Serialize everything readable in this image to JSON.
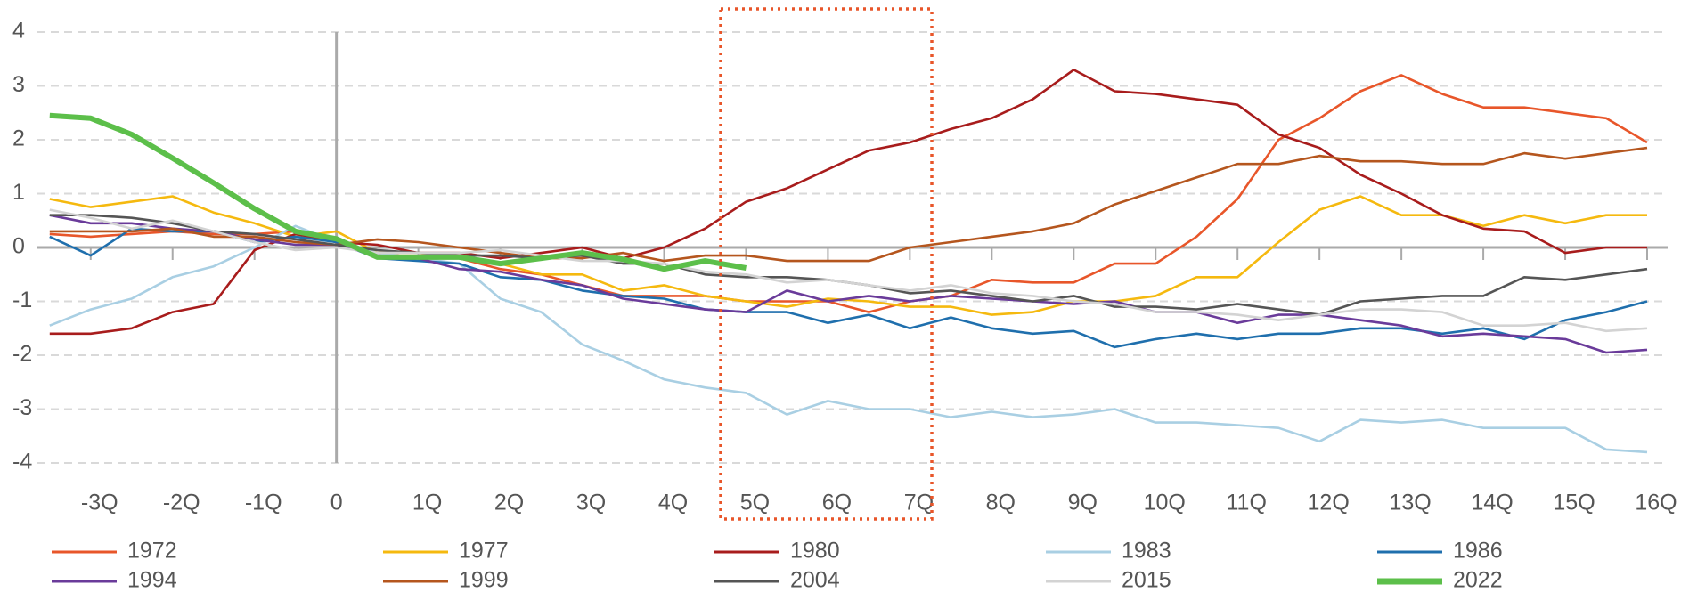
{
  "chart_data": {
    "type": "line",
    "x": [
      -3.5,
      -3,
      -2.5,
      -2,
      -1.5,
      -1,
      -0.5,
      0,
      0.5,
      1,
      1.5,
      2,
      2.5,
      3,
      3.5,
      4,
      4.5,
      5,
      5.5,
      6,
      6.5,
      7,
      7.5,
      8,
      8.5,
      9,
      9.5,
      10,
      10.5,
      11,
      11.5,
      12,
      12.5,
      13,
      13.5,
      14,
      14.5,
      15,
      15.5,
      16
    ],
    "xlim": [
      -3.65,
      16.25
    ],
    "xticks": [
      {
        "value": -3,
        "label": "-3Q"
      },
      {
        "value": -2,
        "label": "-2Q"
      },
      {
        "value": -1,
        "label": "-1Q"
      },
      0,
      {
        "value": 1,
        "label": "1Q"
      },
      {
        "value": 2,
        "label": "2Q"
      },
      {
        "value": 3,
        "label": "3Q"
      },
      {
        "value": 4,
        "label": "4Q"
      },
      {
        "value": 5,
        "label": "5Q"
      },
      {
        "value": 6,
        "label": "6Q"
      },
      {
        "value": 7,
        "label": "7Q"
      },
      {
        "value": 8,
        "label": "8Q"
      },
      {
        "value": 9,
        "label": "9Q"
      },
      {
        "value": 10,
        "label": "10Q"
      },
      {
        "value": 11,
        "label": "11Q"
      },
      {
        "value": 12,
        "label": "12Q"
      },
      {
        "value": 13,
        "label": "13Q"
      },
      {
        "value": 14,
        "label": "14Q"
      },
      {
        "value": 15,
        "label": "15Q"
      },
      {
        "value": 16,
        "label": "16Q"
      }
    ],
    "ylim": [
      -4,
      4
    ],
    "yticks": [
      -4,
      -3,
      -2,
      -1,
      0,
      1,
      2,
      3,
      4
    ],
    "grid": true,
    "legend": "bottom",
    "series": [
      {
        "name": "1972",
        "color": "#e8562a",
        "values": [
          0.25,
          0.2,
          0.25,
          0.3,
          0.25,
          0.25,
          0.3,
          0.1,
          -0.1,
          -0.2,
          -0.2,
          -0.4,
          -0.5,
          -0.7,
          -0.9,
          -0.9,
          -0.9,
          -1.0,
          -1.0,
          -1.0,
          -1.2,
          -1.0,
          -0.9,
          -0.6,
          -0.65,
          -0.65,
          -0.3,
          -0.3,
          0.2,
          0.9,
          2.0,
          2.4,
          2.9,
          3.2,
          2.85,
          2.6,
          2.6,
          2.5,
          2.4,
          1.95
        ]
      },
      {
        "name": "1977",
        "color": "#f5b90f",
        "values": [
          0.9,
          0.75,
          0.85,
          0.95,
          0.65,
          0.45,
          0.2,
          0.3,
          -0.1,
          -0.1,
          -0.2,
          -0.3,
          -0.5,
          -0.5,
          -0.8,
          -0.7,
          -0.9,
          -1.0,
          -1.1,
          -0.95,
          -1.0,
          -1.1,
          -1.1,
          -1.25,
          -1.2,
          -1.0,
          -1.0,
          -0.9,
          -0.55,
          -0.55,
          0.1,
          0.7,
          0.95,
          0.6,
          0.6,
          0.4,
          0.6,
          0.45,
          0.6,
          0.6
        ]
      },
      {
        "name": "1980",
        "color": "#a81c1c",
        "values": [
          -1.6,
          -1.6,
          -1.5,
          -1.2,
          -1.05,
          -0.05,
          0.25,
          0.1,
          0.05,
          -0.1,
          -0.1,
          -0.2,
          -0.1,
          0,
          -0.2,
          0,
          0.35,
          0.85,
          1.1,
          1.45,
          1.8,
          1.95,
          2.2,
          2.4,
          2.75,
          3.3,
          2.9,
          2.85,
          2.75,
          2.65,
          2.1,
          1.85,
          1.35,
          1.0,
          0.6,
          0.35,
          0.3,
          -0.1,
          0,
          0
        ]
      },
      {
        "name": "1983",
        "color": "#a9cfe3",
        "values": [
          -1.45,
          -1.15,
          -0.95,
          -0.55,
          -0.35,
          0,
          0.4,
          0.1,
          -0.1,
          -0.2,
          -0.3,
          -0.95,
          -1.2,
          -1.8,
          -2.1,
          -2.45,
          -2.6,
          -2.7,
          -3.1,
          -2.85,
          -3.0,
          -3.0,
          -3.15,
          -3.05,
          -3.15,
          -3.1,
          -3.0,
          -3.25,
          -3.25,
          -3.3,
          -3.35,
          -3.6,
          -3.2,
          -3.25,
          -3.2,
          -3.35,
          -3.35,
          -3.35,
          -3.75,
          -3.8
        ]
      },
      {
        "name": "1986",
        "color": "#1f6fad",
        "values": [
          0.2,
          -0.15,
          0.35,
          0.3,
          0.3,
          0.1,
          0.2,
          0.1,
          -0.2,
          -0.25,
          -0.3,
          -0.55,
          -0.6,
          -0.8,
          -0.9,
          -0.95,
          -1.15,
          -1.2,
          -1.2,
          -1.4,
          -1.25,
          -1.5,
          -1.3,
          -1.5,
          -1.6,
          -1.55,
          -1.85,
          -1.7,
          -1.6,
          -1.7,
          -1.6,
          -1.6,
          -1.5,
          -1.5,
          -1.6,
          -1.5,
          -1.7,
          -1.35,
          -1.2,
          -1.0
        ]
      },
      {
        "name": "1994",
        "color": "#6a3b9a",
        "values": [
          0.6,
          0.45,
          0.45,
          0.35,
          0.3,
          0.15,
          0.05,
          0.05,
          -0.15,
          -0.2,
          -0.4,
          -0.45,
          -0.6,
          -0.7,
          -0.95,
          -1.05,
          -1.15,
          -1.2,
          -0.8,
          -1.0,
          -0.9,
          -1.0,
          -0.9,
          -0.95,
          -1.0,
          -1.05,
          -1.0,
          -1.2,
          -1.2,
          -1.4,
          -1.25,
          -1.25,
          -1.35,
          -1.45,
          -1.65,
          -1.6,
          -1.65,
          -1.7,
          -1.95,
          -1.9
        ]
      },
      {
        "name": "1999",
        "color": "#b5561e",
        "values": [
          0.3,
          0.3,
          0.3,
          0.35,
          0.2,
          0.2,
          0.1,
          0.05,
          0.15,
          0.1,
          0,
          -0.1,
          -0.2,
          -0.2,
          -0.1,
          -0.25,
          -0.15,
          -0.15,
          -0.25,
          -0.25,
          -0.25,
          0,
          0.1,
          0.2,
          0.3,
          0.45,
          0.8,
          1.05,
          1.3,
          1.55,
          1.55,
          1.7,
          1.6,
          1.6,
          1.55,
          1.55,
          1.75,
          1.65,
          1.75,
          1.85
        ]
      },
      {
        "name": "2004",
        "color": "#555555",
        "values": [
          0.6,
          0.6,
          0.55,
          0.45,
          0.3,
          0.25,
          0.15,
          0.05,
          -0.05,
          -0.1,
          -0.15,
          -0.15,
          -0.2,
          -0.15,
          -0.3,
          -0.3,
          -0.5,
          -0.55,
          -0.55,
          -0.6,
          -0.7,
          -0.85,
          -0.8,
          -0.9,
          -1.0,
          -0.9,
          -1.1,
          -1.1,
          -1.15,
          -1.05,
          -1.15,
          -1.25,
          -1.0,
          -0.95,
          -0.9,
          -0.9,
          -0.55,
          -0.6,
          -0.5,
          -0.4
        ]
      },
      {
        "name": "2015",
        "color": "#d3d3d3",
        "values": [
          0.7,
          0.55,
          0.35,
          0.5,
          0.3,
          0.1,
          -0.05,
          0,
          -0.1,
          -0.1,
          -0.1,
          -0.05,
          -0.15,
          -0.25,
          -0.25,
          -0.3,
          -0.45,
          -0.5,
          -0.65,
          -0.6,
          -0.7,
          -0.8,
          -0.7,
          -0.85,
          -0.9,
          -1.0,
          -1.05,
          -1.2,
          -1.2,
          -1.25,
          -1.35,
          -1.25,
          -1.15,
          -1.15,
          -1.2,
          -1.45,
          -1.45,
          -1.4,
          -1.55,
          -1.5
        ]
      },
      {
        "name": "2022",
        "color": "#5cbf4a",
        "values": [
          2.45,
          2.4,
          2.1,
          1.66,
          1.2,
          0.72,
          0.3,
          0.16,
          -0.18,
          -0.18,
          -0.18,
          -0.3,
          -0.2,
          -0.1,
          -0.22,
          -0.4,
          -0.25,
          -0.38,
          null,
          null,
          null,
          null,
          null,
          null,
          null,
          null,
          null,
          null,
          null,
          null,
          null,
          null,
          null,
          null,
          null,
          null,
          null,
          null,
          null,
          null
        ]
      }
    ]
  }
}
